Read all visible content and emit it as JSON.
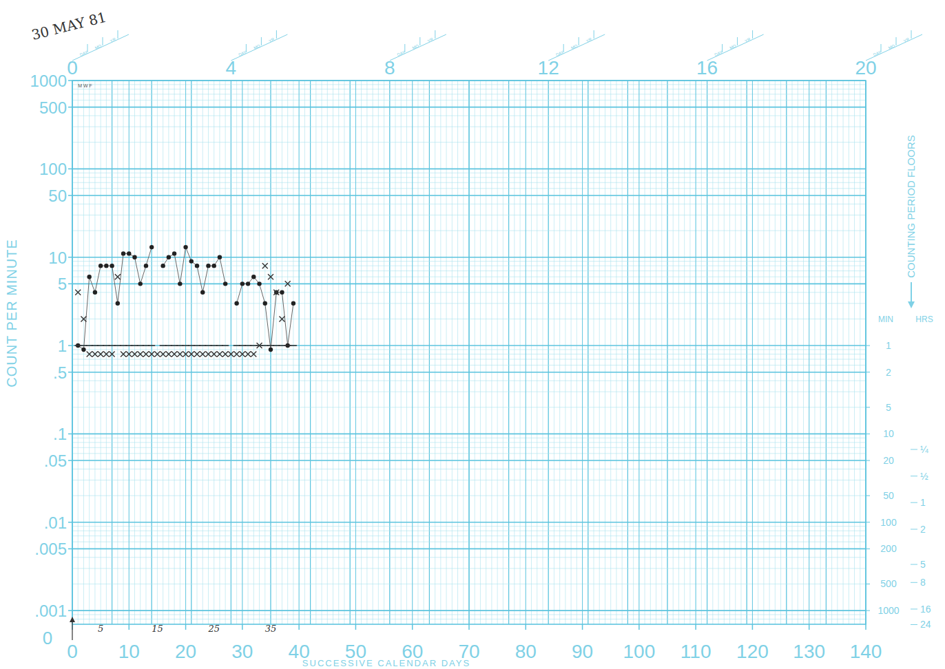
{
  "chart_data": {
    "type": "line",
    "x_label": "SUCCESSIVE CALENDAR DAYS",
    "y_label": "COUNT PER MINUTE",
    "log": "y",
    "grid": true,
    "xlim": [
      0,
      140
    ],
    "xticks": [
      0,
      10,
      20,
      30,
      40,
      50,
      60,
      70,
      80,
      90,
      100,
      110,
      120,
      130,
      140
    ],
    "ylim": [
      0.0007,
      1000
    ],
    "yticks": [
      {
        "value": 1000,
        "label": "1000"
      },
      {
        "value": 500,
        "label": "500"
      },
      100,
      50,
      10,
      5,
      1,
      {
        "value": 0.5,
        "label": ".5"
      },
      {
        "value": 0.1,
        "label": ".1"
      },
      {
        "value": 0.05,
        "label": ".05"
      },
      {
        "value": 0.01,
        "label": ".01"
      },
      {
        "value": 0.005,
        "label": ".005"
      },
      {
        "value": 0.001,
        "label": ".001"
      }
    ],
    "zero_label": "0",
    "top_axis": {
      "xlim": [
        0,
        20
      ],
      "ticks": [
        0,
        4,
        8,
        12,
        16,
        20
      ],
      "date_box": [
        "DAY",
        "MO",
        "YR"
      ]
    },
    "counting_floors": {
      "title": "COUNTING PERIOD FLOORS",
      "min_label": "MIN",
      "hrs_label": "HRS",
      "min": [
        {
          "value": 1,
          "label": "1"
        },
        {
          "value": 0.5,
          "label": "2"
        },
        {
          "value": 0.2,
          "label": "5"
        },
        {
          "value": 0.1,
          "label": "10"
        },
        {
          "value": 0.05,
          "label": "20"
        },
        {
          "value": 0.02,
          "label": "50"
        },
        {
          "value": 0.01,
          "label": "100"
        },
        {
          "value": 0.005,
          "label": "200"
        },
        {
          "value": 0.002,
          "label": "500"
        },
        {
          "value": 0.001,
          "label": "1000"
        }
      ],
      "hrs": [
        {
          "value": 0.0667,
          "label": "¼"
        },
        {
          "value": 0.0333,
          "label": "½"
        },
        {
          "value": 0.0167,
          "label": "1"
        },
        {
          "value": 0.00833,
          "label": "2"
        },
        {
          "value": 0.00333,
          "label": "5"
        },
        {
          "value": 0.00208,
          "label": "8"
        },
        {
          "value": 0.00104,
          "label": "16"
        },
        {
          "value": 0.000694,
          "label": "24"
        }
      ]
    },
    "annotations": {
      "date": "30 MAY 81",
      "week_days": "M W F",
      "day_notes": [
        {
          "value": 5,
          "label": "5"
        },
        {
          "value": 15,
          "label": "15"
        },
        {
          "value": 25,
          "label": "25"
        },
        {
          "value": 35,
          "label": "35"
        }
      ]
    },
    "x": [
      1,
      2,
      3,
      4,
      5,
      6,
      7,
      8,
      9,
      10,
      11,
      12,
      13,
      14,
      15,
      16,
      17,
      18,
      19,
      20,
      21,
      22,
      23,
      24,
      25,
      26,
      27,
      28,
      29,
      30,
      31,
      32,
      33,
      34,
      35,
      36,
      37,
      38,
      39
    ],
    "series": [
      {
        "color": "#222222",
        "marker": "dot",
        "line_style": "solid",
        "values": [
          1,
          0.9,
          6,
          4,
          8,
          8,
          8,
          3,
          11,
          11,
          10,
          5,
          8,
          13,
          null,
          8,
          10,
          11,
          5,
          13,
          9,
          8,
          4,
          8,
          8,
          10,
          5,
          null,
          3,
          5,
          5,
          6,
          5,
          3,
          0.9,
          4,
          4,
          1,
          3
        ]
      },
      {
        "color": "#333333",
        "marker": "x",
        "line_style": "none",
        "values": [
          4,
          2,
          0.8,
          0.8,
          0.8,
          0.8,
          0.8,
          6,
          0.8,
          0.8,
          0.8,
          0.8,
          0.8,
          0.8,
          0.8,
          0.8,
          0.8,
          0.8,
          0.8,
          0.8,
          0.8,
          0.8,
          0.8,
          0.8,
          0.8,
          0.8,
          0.8,
          0.8,
          0.8,
          0.8,
          0.8,
          0.8,
          1,
          8,
          6,
          4,
          2,
          5,
          null
        ]
      },
      {
        "color": "#333333",
        "marker": "dash",
        "line_style": "none",
        "values": [
          1,
          1,
          1,
          1,
          1,
          1,
          1,
          1,
          1,
          1,
          1,
          1,
          1,
          1,
          null,
          1,
          1,
          1,
          1,
          1,
          1,
          1,
          1,
          1,
          1,
          1,
          1,
          null,
          1,
          1,
          1,
          1,
          1,
          1,
          1,
          1,
          1,
          1,
          1
        ]
      }
    ]
  }
}
